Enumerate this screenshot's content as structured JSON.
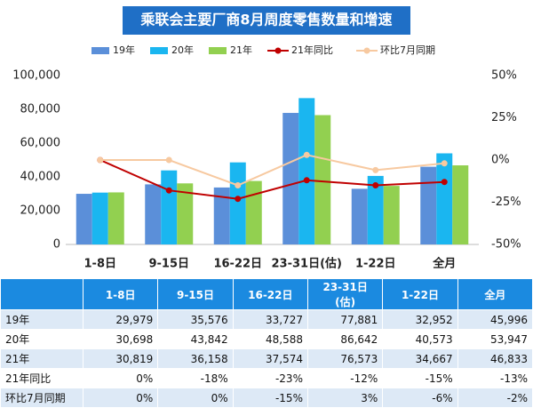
{
  "chart_data": {
    "type": "bar",
    "title": "乘联会主要厂商8月周度零售数量和增速",
    "categories": [
      "1-8日",
      "9-15日",
      "16-22日",
      "23-31日(估)",
      "1-22日",
      "全月"
    ],
    "series": [
      {
        "name": "19年",
        "color": "#5b8fd9",
        "values": [
          29979,
          35576,
          33727,
          77881,
          32952,
          45996
        ],
        "value_labels": [
          "29,979",
          "35,576",
          "33,727",
          "77,881",
          "32,952",
          "45,996"
        ]
      },
      {
        "name": "20年",
        "color": "#1ab6f0",
        "values": [
          30698,
          43842,
          48588,
          86642,
          40573,
          53947
        ],
        "value_labels": [
          "30,698",
          "43,842",
          "48,588",
          "86,642",
          "40,573",
          "53,947"
        ]
      },
      {
        "name": "21年",
        "color": "#92d050",
        "values": [
          30819,
          36158,
          37574,
          76573,
          34667,
          46833
        ],
        "value_labels": [
          "30,819",
          "36,158",
          "37,574",
          "76,573",
          "34,667",
          "46,833"
        ]
      },
      {
        "name": "21年同比",
        "type": "line",
        "axis": "y2",
        "color": "#c00000",
        "values": [
          0,
          -18,
          -23,
          -12,
          -15,
          -13
        ],
        "value_labels": [
          "0%",
          "-18%",
          "-23%",
          "-12%",
          "-15%",
          "-13%"
        ]
      },
      {
        "name": "环比7月同期",
        "type": "line",
        "axis": "y2",
        "color": "#f7c9a0",
        "values": [
          0,
          0,
          -15,
          3,
          -6,
          -2
        ],
        "value_labels": [
          "0%",
          "0%",
          "-15%",
          "3%",
          "-6%",
          "-2%"
        ]
      }
    ],
    "ylim": [
      0,
      100000
    ],
    "yticks": [
      0,
      {
        "value": 20000,
        "label": "20,000"
      },
      {
        "value": 40000,
        "label": "40,000"
      },
      {
        "value": 60000,
        "label": "60,000"
      },
      {
        "value": 80000,
        "label": "80,000"
      },
      {
        "value": 100000,
        "label": "100,000"
      }
    ],
    "y2lim": [
      -50,
      50
    ],
    "y2ticks": [
      {
        "value": -50,
        "label": "-50%"
      },
      {
        "value": -25,
        "label": "-25%"
      },
      {
        "value": 0,
        "label": "0%"
      },
      {
        "value": 25,
        "label": "25%"
      },
      {
        "value": 50,
        "label": "50%"
      }
    ],
    "legend": "top"
  }
}
